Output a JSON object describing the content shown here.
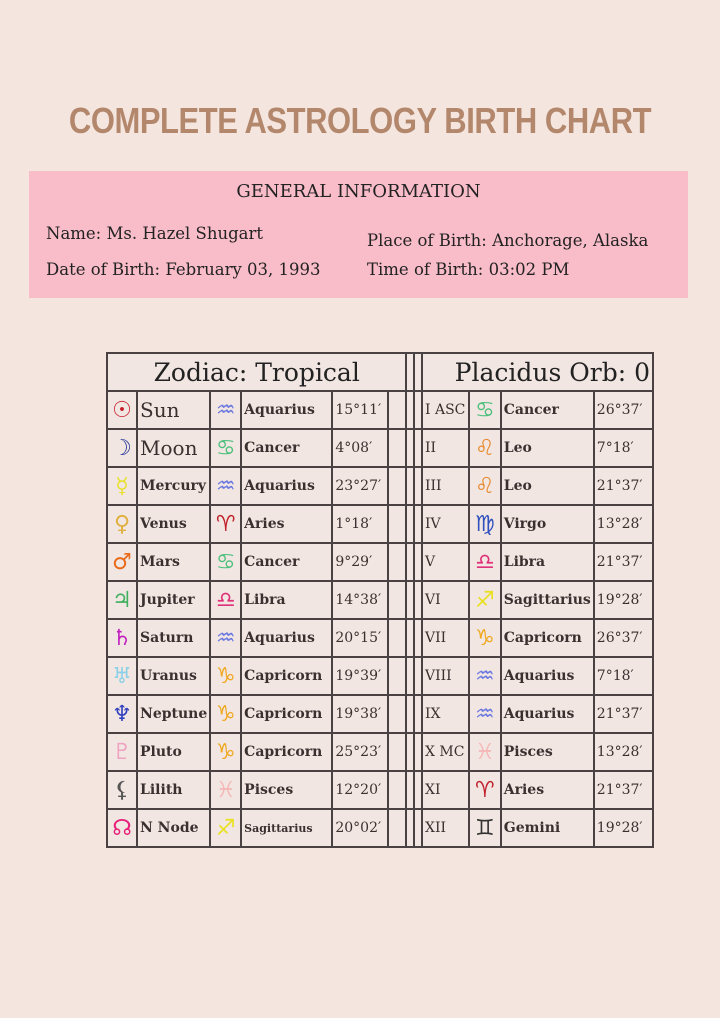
{
  "title": "COMPLETE ASTROLOGY BIRTH CHART",
  "general": {
    "heading": "GENERAL INFORMATION",
    "name": "Name: Ms. Hazel Shugart",
    "dob": "Date of Birth: February 03, 1993",
    "place": "Place of Birth: Anchorage, Alaska",
    "time": "Time of Birth: 03:02 PM"
  },
  "table": {
    "left_header": "Zodiac: Tropical",
    "right_header": "Placidus Orb: 0",
    "planets": [
      {
        "glyph": "☉",
        "color": "#c8202e",
        "name": "Sun",
        "sign_glyph": "♒",
        "sign_color": "#6a78e0",
        "sign": "Aquarius",
        "degree": "15°11′"
      },
      {
        "glyph": "☽",
        "color": "#2a3a9c",
        "name": "Moon",
        "sign_glyph": "♋",
        "sign_color": "#4cbf7c",
        "sign": "Cancer",
        "degree": "4°08′"
      },
      {
        "glyph": "☿",
        "color": "#e8e030",
        "name": "Mercury",
        "sign_glyph": "♒",
        "sign_color": "#6a78e0",
        "sign": "Aquarius",
        "degree": "23°27′"
      },
      {
        "glyph": "♀",
        "color": "#e0b040",
        "name": "Venus",
        "sign_glyph": "♈",
        "sign_color": "#c0202a",
        "sign": "Aries",
        "degree": "1°18′"
      },
      {
        "glyph": "♂",
        "color": "#e86a1a",
        "name": "Mars",
        "sign_glyph": "♋",
        "sign_color": "#4cbf7c",
        "sign": "Cancer",
        "degree": "9°29′"
      },
      {
        "glyph": "♃",
        "color": "#40b060",
        "name": "Jupiter",
        "sign_glyph": "♎",
        "sign_color": "#e0307a",
        "sign": "Libra",
        "degree": "14°38′"
      },
      {
        "glyph": "♄",
        "color": "#c020c0",
        "name": "Saturn",
        "sign_glyph": "♒",
        "sign_color": "#6a78e0",
        "sign": "Aquarius",
        "degree": "20°15′"
      },
      {
        "glyph": "♅",
        "color": "#8cd0e8",
        "name": "Uranus",
        "sign_glyph": "♑",
        "sign_color": "#f0a820",
        "sign": "Capricorn",
        "degree": "19°39′"
      },
      {
        "glyph": "♆",
        "color": "#3040c0",
        "name": "Neptune",
        "sign_glyph": "♑",
        "sign_color": "#f0a820",
        "sign": "Capricorn",
        "degree": "19°38′"
      },
      {
        "glyph": "♇",
        "color": "#f0a0c0",
        "name": "Pluto",
        "sign_glyph": "♑",
        "sign_color": "#f0a820",
        "sign": "Capricorn",
        "degree": "25°23′"
      },
      {
        "glyph": "⚸",
        "color": "#555555",
        "name": "Lilith",
        "sign_glyph": "♓",
        "sign_color": "#f4b8b8",
        "sign": "Pisces",
        "degree": "12°20′"
      },
      {
        "glyph": "☊",
        "color": "#e8207a",
        "name": "N Node",
        "sign_glyph": "♐",
        "sign_color": "#e8e020",
        "sign": "Sagittarius",
        "degree": "20°02′"
      }
    ],
    "houses": [
      {
        "house": "I ASC",
        "sign_glyph": "♋",
        "sign_color": "#4cbf7c",
        "sign": "Cancer",
        "degree": "26°37′"
      },
      {
        "house": "II",
        "sign_glyph": "♌",
        "sign_color": "#e88a30",
        "sign": "Leo",
        "degree": "7°18′"
      },
      {
        "house": "III",
        "sign_glyph": "♌",
        "sign_color": "#e88a30",
        "sign": "Leo",
        "degree": "21°37′"
      },
      {
        "house": "IV",
        "sign_glyph": "♍",
        "sign_color": "#3050c0",
        "sign": "Virgo",
        "degree": "13°28′"
      },
      {
        "house": "V",
        "sign_glyph": "♎",
        "sign_color": "#e0307a",
        "sign": "Libra",
        "degree": "21°37′"
      },
      {
        "house": "VI",
        "sign_glyph": "♐",
        "sign_color": "#e8e020",
        "sign": "Sagittarius",
        "degree": "19°28′"
      },
      {
        "house": "VII",
        "sign_glyph": "♑",
        "sign_color": "#f0a820",
        "sign": "Capricorn",
        "degree": "26°37′"
      },
      {
        "house": "VIII",
        "sign_glyph": "♒",
        "sign_color": "#6a78e0",
        "sign": "Aquarius",
        "degree": "7°18′"
      },
      {
        "house": "IX",
        "sign_glyph": "♒",
        "sign_color": "#6a78e0",
        "sign": "Aquarius",
        "degree": "21°37′"
      },
      {
        "house": "X MC",
        "sign_glyph": "♓",
        "sign_color": "#f4b8b8",
        "sign": "Pisces",
        "degree": "13°28′"
      },
      {
        "house": "XI",
        "sign_glyph": "♈",
        "sign_color": "#c0202a",
        "sign": "Aries",
        "degree": "21°37′"
      },
      {
        "house": "XII",
        "sign_glyph": "♊",
        "sign_color": "#333333",
        "sign": "Gemini",
        "degree": "19°28′"
      }
    ]
  }
}
